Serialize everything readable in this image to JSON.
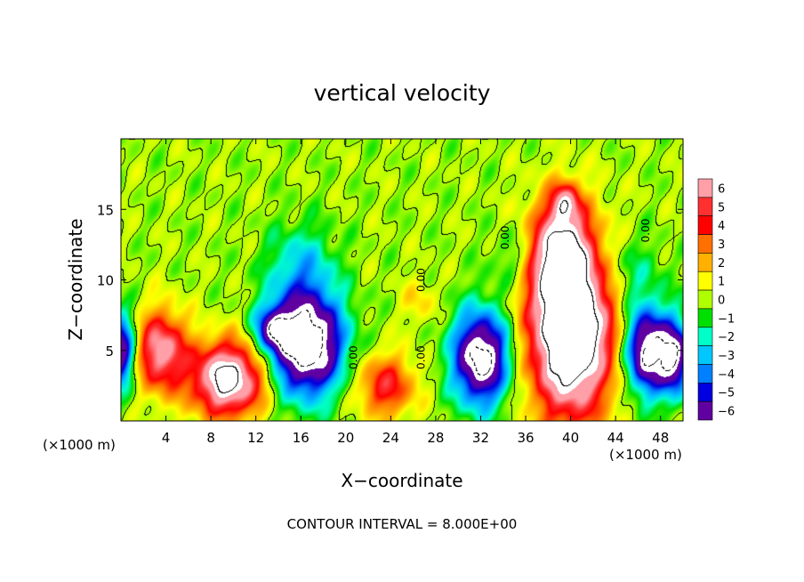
{
  "chart_data": {
    "type": "heatmap",
    "title": "vertical velocity",
    "xlabel": "X−coordinate",
    "ylabel": "Z−coordinate",
    "x_unit_left": "(×1000 m)",
    "x_unit_right": "(×1000 m)",
    "footer": "CONTOUR INTERVAL = 8.000E+00",
    "xlim": [
      0,
      50
    ],
    "ylim": [
      0,
      20
    ],
    "x_ticks": [
      4,
      8,
      12,
      16,
      20,
      24,
      28,
      32,
      36,
      40,
      44,
      48
    ],
    "x_tick_labels": [
      "4",
      "8",
      "12",
      "16",
      "20",
      "24",
      "28",
      "32",
      "36",
      "40",
      "44",
      "48"
    ],
    "y_ticks": [
      5,
      10,
      15
    ],
    "y_tick_labels": [
      "5",
      "10",
      "15"
    ],
    "colorbar": {
      "levels": [
        6,
        5,
        4,
        3,
        2,
        1,
        0,
        -1,
        -2,
        -3,
        -4,
        -5,
        -6
      ],
      "labels": [
        "6",
        "5",
        "4",
        "3",
        "2",
        "1",
        "0",
        "−1",
        "−2",
        "−3",
        "−4",
        "−5",
        "−6"
      ],
      "colors": [
        "#ff9fa8",
        "#ff3030",
        "#ff0000",
        "#ff7000",
        "#ffb000",
        "#ffff00",
        "#b0ff00",
        "#00e000",
        "#00ffc8",
        "#00c8ff",
        "#0080ff",
        "#0000e0",
        "#6000a0"
      ]
    },
    "contour_labels": [
      {
        "text": "0.00",
        "x": 21,
        "y": 4.5
      },
      {
        "text": "0.00",
        "x": 27,
        "y": 4.5
      },
      {
        "text": "0.00",
        "x": 27,
        "y": 10
      },
      {
        "text": "0.00",
        "x": 34.5,
        "y": 13
      },
      {
        "text": "0.00",
        "x": 47,
        "y": 13.5
      }
    ],
    "features": [
      {
        "name": "updraft-core",
        "x": 40,
        "z": 6.5,
        "rx": 3.6,
        "rz": 6.0,
        "w": 12
      },
      {
        "name": "updraft-lobe",
        "x": 39,
        "z": 12,
        "rx": 2.6,
        "rz": 3.6,
        "w": 6
      },
      {
        "name": "updraft-plume",
        "x": 39.5,
        "z": 15.5,
        "rx": 1.2,
        "rz": 1.4,
        "w": 4.5
      },
      {
        "name": "updraft",
        "x": 9.5,
        "z": 3.0,
        "rx": 3.2,
        "rz": 2.6,
        "w": 9
      },
      {
        "name": "updraft",
        "x": 3.5,
        "z": 5.0,
        "rx": 2.3,
        "rz": 2.8,
        "w": 6.5
      },
      {
        "name": "updraft",
        "x": 23.5,
        "z": 2.5,
        "rx": 2.6,
        "rz": 2.2,
        "w": 4.5
      },
      {
        "name": "updraft-weak",
        "x": 26.5,
        "z": 8.5,
        "rx": 1.5,
        "rz": 1.6,
        "w": 1.5
      },
      {
        "name": "downdraft-core",
        "x": 16.5,
        "z": 5.5,
        "rx": 3.2,
        "rz": 3.6,
        "w": -10
      },
      {
        "name": "downdraft-band",
        "x": 13.5,
        "z": 6.5,
        "rx": 1.6,
        "rz": 1.6,
        "w": -5
      },
      {
        "name": "downdraft-aloft",
        "x": 16,
        "z": 11,
        "rx": 3.0,
        "rz": 3.0,
        "w": -2.5
      },
      {
        "name": "downdraft",
        "x": 32,
        "z": 4.5,
        "rx": 2.5,
        "rz": 3.3,
        "w": -9
      },
      {
        "name": "downdraft",
        "x": 46.8,
        "z": 5.0,
        "rx": 1.9,
        "rz": 3.0,
        "w": -9
      },
      {
        "name": "downdraft",
        "x": 49.3,
        "z": 4.5,
        "rx": 1.3,
        "rz": 2.6,
        "w": -7
      },
      {
        "name": "downdraft-edge",
        "x": 0,
        "z": 5.0,
        "rx": 1.3,
        "rz": 2.6,
        "w": -7
      },
      {
        "name": "downdraft-weak",
        "x": 35,
        "z": 11.5,
        "rx": 2.0,
        "rz": 2.2,
        "w": -1.6
      },
      {
        "name": "downdraft-weak",
        "x": 45,
        "z": 10.5,
        "rx": 3.0,
        "rz": 2.6,
        "w": -1.8
      }
    ]
  }
}
